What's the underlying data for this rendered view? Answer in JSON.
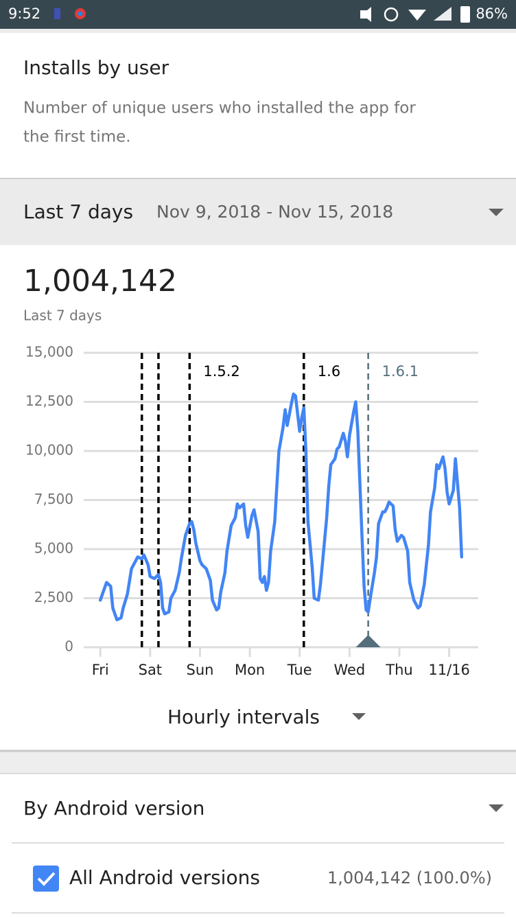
{
  "status_bar": {
    "time": "9:52",
    "battery": "86%"
  },
  "header": {
    "title": "Installs by user",
    "description_lines": [
      "Number of unique users who installed the app for",
      "the first time."
    ]
  },
  "range": {
    "label": "Last 7 days",
    "dates": "Nov 9, 2018 - Nov 15, 2018"
  },
  "summary": {
    "total": "1,004,142",
    "caption": "Last 7 days"
  },
  "chart_data": {
    "type": "line",
    "color": "#4285f4",
    "grid": true,
    "x": [
      0,
      1,
      3,
      5,
      6,
      8,
      10,
      11,
      13,
      15,
      16,
      18,
      20,
      21,
      23,
      24,
      26,
      28,
      29,
      30,
      31,
      33,
      34,
      36,
      38,
      39,
      41,
      43,
      44,
      45,
      46,
      48,
      49,
      51,
      53,
      54,
      56,
      57,
      58,
      60,
      61,
      63,
      65,
      66,
      67,
      69,
      70,
      71,
      73,
      74,
      76,
      77,
      78,
      79,
      80,
      81,
      82,
      84,
      85,
      86,
      88,
      89,
      90,
      92,
      93,
      94,
      96,
      97,
      98,
      99,
      100,
      102,
      103,
      105,
      106,
      107,
      109,
      110,
      111,
      113,
      114,
      115,
      117,
      118,
      119,
      120,
      122,
      123,
      124,
      126,
      127,
      128,
      129,
      130,
      132,
      133,
      134,
      136,
      137,
      138,
      139,
      141,
      142,
      143,
      145,
      146,
      148,
      149,
      151,
      153,
      154,
      156,
      158,
      159,
      161,
      162,
      163,
      165,
      166,
      167,
      168,
      170,
      171,
      173,
      174
    ],
    "values": [
      2400,
      2700,
      3300,
      3100,
      2000,
      1400,
      1500,
      2000,
      2700,
      4000,
      4200,
      4600,
      4500,
      4700,
      4200,
      3600,
      3500,
      3700,
      3300,
      2000,
      1700,
      1800,
      2500,
      2900,
      3800,
      4500,
      5700,
      6300,
      6400,
      6000,
      5300,
      4400,
      4200,
      4000,
      3400,
      2400,
      1900,
      2000,
      2800,
      3800,
      4900,
      6200,
      6600,
      7300,
      7100,
      7300,
      6200,
      5600,
      6700,
      7000,
      5900,
      3500,
      3300,
      3600,
      2900,
      3300,
      4900,
      6400,
      8200,
      10000,
      11200,
      12100,
      11300,
      12400,
      12900,
      12800,
      11000,
      11700,
      12200,
      10000,
      6400,
      4100,
      2500,
      2400,
      3200,
      4300,
      6600,
      8200,
      9300,
      9600,
      10100,
      10200,
      10900,
      10500,
      9700,
      10800,
      12000,
      12500,
      11000,
      5700,
      3100,
      1900,
      1800,
      2500,
      3800,
      4600,
      6300,
      6900,
      6900,
      7100,
      7400,
      7200,
      6000,
      5400,
      5700,
      5600,
      4900,
      3300,
      2400,
      2000,
      2100,
      3200,
      5200,
      6900,
      8100,
      9300,
      9100,
      9700,
      9100,
      7900,
      7300,
      8000,
      9600,
      7100,
      4600
    ],
    "xlim": [
      -8,
      182
    ],
    "xticks": [
      {
        "value": 0,
        "label": "Fri"
      },
      {
        "value": 24,
        "label": "Sat"
      },
      {
        "value": 48,
        "label": "Sun"
      },
      {
        "value": 72,
        "label": "Mon"
      },
      {
        "value": 96,
        "label": "Tue"
      },
      {
        "value": 120,
        "label": "Wed"
      },
      {
        "value": 144,
        "label": "Thu"
      },
      {
        "value": 168,
        "label": "11/16"
      }
    ],
    "ylim": [
      0,
      15000
    ],
    "yticks": [
      0,
      {
        "value": 2500,
        "label": "2,500"
      },
      {
        "value": 5000,
        "label": "5,000"
      },
      {
        "value": 7500,
        "label": "7,500"
      },
      {
        "value": 10000,
        "label": "10,000"
      },
      {
        "value": 12500,
        "label": "12,500"
      },
      {
        "value": 15000,
        "label": "15,000"
      }
    ],
    "annotations": [
      {
        "x": 20,
        "color": "#000000"
      },
      {
        "x": 28,
        "color": "#000000"
      },
      {
        "x": 43,
        "label": "1.5.2",
        "color": "#000000"
      },
      {
        "x": 98,
        "label": "1.6",
        "color": "#000000"
      },
      {
        "x": 129,
        "label": "1.6.1",
        "color": "#546e7a",
        "selected": true
      }
    ]
  },
  "interval": {
    "label": "Hourly intervals"
  },
  "breakdown": {
    "title": "By Android version",
    "rows": [
      {
        "label": "All Android versions",
        "value": "1,004,142 (100.0%)",
        "checked": true
      }
    ]
  }
}
